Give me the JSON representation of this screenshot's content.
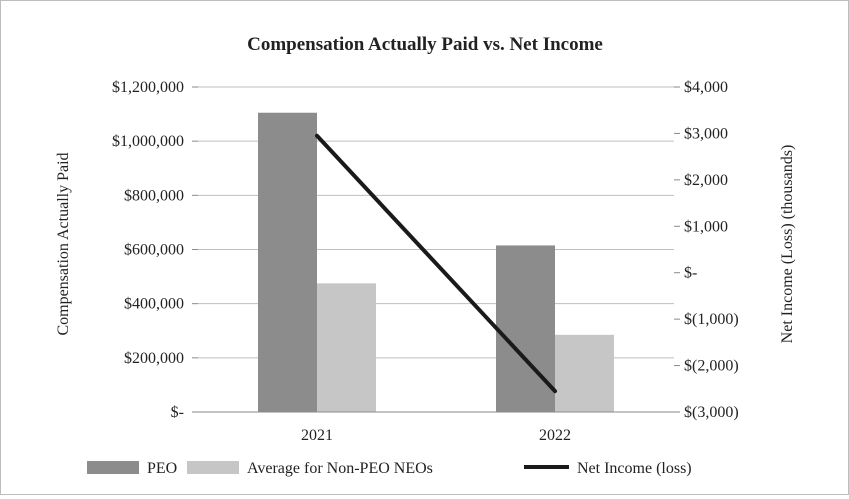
{
  "chart_data": {
    "type": "bar",
    "title": "Compensation Actually Paid vs. Net Income",
    "categories": [
      "2021",
      "2022"
    ],
    "series": [
      {
        "name": "PEO",
        "type": "bar",
        "axis": "left",
        "color": "#8c8c8c",
        "values": [
          1105000,
          615000
        ]
      },
      {
        "name": "Average for Non-PEO NEOs",
        "type": "bar",
        "axis": "left",
        "color": "#c6c6c6",
        "values": [
          475000,
          285000
        ]
      },
      {
        "name": "Net Income (loss)",
        "type": "line",
        "axis": "right",
        "color": "#1a1a1a",
        "values": [
          2950,
          -2550
        ]
      }
    ],
    "y_left": {
      "label": "Compensation Actually Paid",
      "lim": [
        0,
        1200000
      ],
      "ticks": [
        0,
        200000,
        400000,
        600000,
        800000,
        1000000,
        1200000
      ],
      "tick_labels": [
        "$-",
        "$200,000",
        "$400,000",
        "$600,000",
        "$800,000",
        "$1,000,000",
        "$1,200,000"
      ]
    },
    "y_right": {
      "label": "Net Income (Loss) (thousands)",
      "lim": [
        -3000,
        4000
      ],
      "ticks": [
        -3000,
        -2000,
        -1000,
        0,
        1000,
        2000,
        3000,
        4000
      ],
      "tick_labels": [
        "$(3,000)",
        "$(2,000)",
        "$(1,000)",
        "$-",
        "$1,000",
        "$2,000",
        "$3,000",
        "$4,000"
      ]
    },
    "grid": true,
    "legend": "bottom"
  }
}
